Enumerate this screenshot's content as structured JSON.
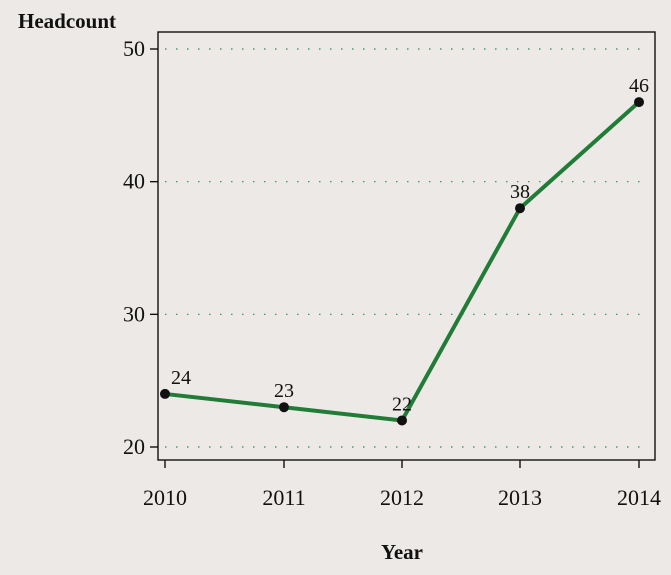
{
  "chart_data": {
    "type": "line",
    "title": "",
    "xlabel": "Year",
    "ylabel": "Headcount",
    "x": [
      2010,
      2011,
      2012,
      2013,
      2014
    ],
    "y_ticks": [
      20,
      30,
      40,
      50
    ],
    "ylim": [
      19.5,
      50
    ],
    "grid": "horizontal-dotted",
    "series": [
      {
        "values": [
          24,
          23,
          22,
          38,
          46
        ],
        "labels": [
          "24",
          "23",
          "22",
          "38",
          "46"
        ],
        "color": "#217c37"
      }
    ],
    "colors": {
      "background": "#ece9e6",
      "plot_background": "#ece9e6",
      "gridline": "#2d8a59",
      "line": "#217c37",
      "marker": "#111111",
      "axis": "#111111"
    }
  }
}
